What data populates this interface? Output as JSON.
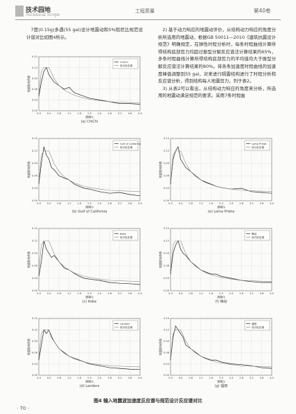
{
  "header": {
    "section": "技术园地",
    "section_en": "Technical Scope",
    "journal": "工程质量",
    "volume": "第40卷"
  },
  "text": {
    "left": "7度(0.15g)多遇(55 gal)设计地震动和5%阻尼比规范设计谱对比如图4所示。",
    "right": "2) 基于动力响应的地震动评价，从结构动力响应的角度分析所选用的地震动，根据GB 50011—2010《建筑抗震设计规范》明确规定，在弹性时程分析时，每条时程曲线计算所得结构底部剪力均超过振型分解反应谱法计算结果的65%，多条时程曲线计算所得结构底部剪力的平均值均大于振型分解反应谱法计算结果的80%。将各条加速度时程曲线的加速度峰值调整到55 gal，对来进行隔震结构进行了时程分析和反应谱分析，得到结构每人地震剪力，列于表2。",
    "right2": "3) 从表2可以看出，从结构动力响应的角度来分析，所选用的地震动满足规范的要求。采用7条时程曲"
  },
  "chart_data": [
    {
      "type": "line",
      "caption": "(a) ChiChi",
      "x_label": "周期/s",
      "y_label": "地震影响系数",
      "xlim": [
        0,
        4
      ],
      "ylim": [
        0,
        0.15
      ],
      "grid": true,
      "legend": "upper right",
      "xticks": [
        {
          "value": 0,
          "label": "0.0"
        },
        0.4,
        0.8,
        1.2,
        1.6,
        {
          "value": 2,
          "label": "2.0"
        },
        2.4,
        2.8,
        3.2,
        3.6,
        {
          "value": 4,
          "label": "4.0"
        }
      ],
      "yticks": [
        {
          "value": 0,
          "label": "0.00"
        },
        {
          "value": 0.03,
          "label": "0.03"
        },
        {
          "value": 0.06,
          "label": "0.06"
        },
        {
          "value": 0.09,
          "label": "0.09"
        },
        {
          "value": 0.12,
          "label": "0.12"
        },
        {
          "value": 0.15,
          "label": "0.15"
        }
      ],
      "x": [
        0,
        0.1,
        0.2,
        0.3,
        0.4,
        0.5,
        0.6,
        0.8,
        1,
        1.2,
        1.4,
        1.6,
        1.8,
        2,
        2.4,
        2.8,
        3.2,
        3.6,
        4
      ],
      "series": [
        {
          "name": "ChiChi",
          "color": "#222222",
          "values": [
            0.04,
            0.08,
            0.11,
            0.12,
            0.1,
            0.09,
            0.08,
            0.07,
            0.06,
            0.065,
            0.05,
            0.045,
            0.04,
            0.035,
            0.03,
            0.025,
            0.02,
            0.02,
            0.018
          ]
        },
        {
          "name": "设计反应谱",
          "color": "#8a8a8a",
          "values": [
            0.045,
            0.11,
            0.12,
            0.12,
            0.12,
            0.105,
            0.09,
            0.07,
            0.058,
            0.05,
            0.043,
            0.039,
            0.035,
            0.032,
            0.028,
            0.025,
            0.024,
            0.023,
            0.022
          ]
        }
      ]
    },
    {
      "type": "line",
      "caption": "(b) Gulf of California",
      "x_label": "周期/s",
      "y_label": "地震影响系数",
      "xlim": [
        0,
        4
      ],
      "ylim": [
        0,
        0.15
      ],
      "grid": true,
      "legend": "upper right",
      "xticks": [
        {
          "value": 0,
          "label": "0.0"
        },
        0.4,
        0.8,
        1.2,
        1.6,
        {
          "value": 2,
          "label": "2.0"
        },
        2.4,
        2.8,
        3.2,
        3.6,
        {
          "value": 4,
          "label": "4.0"
        }
      ],
      "yticks": [
        {
          "value": 0,
          "label": "0.00"
        },
        {
          "value": 0.03,
          "label": "0.03"
        },
        {
          "value": 0.06,
          "label": "0.06"
        },
        {
          "value": 0.09,
          "label": "0.09"
        },
        {
          "value": 0.12,
          "label": "0.12"
        },
        {
          "value": 0.15,
          "label": "0.15"
        }
      ],
      "x": [
        0,
        0.1,
        0.2,
        0.3,
        0.4,
        0.5,
        0.6,
        0.8,
        1,
        1.2,
        1.4,
        1.6,
        1.8,
        2,
        2.4,
        2.8,
        3.2,
        3.6,
        4
      ],
      "series": [
        {
          "name": "Gulf of California",
          "color": "#222222",
          "values": [
            0.04,
            0.09,
            0.13,
            0.11,
            0.1,
            0.08,
            0.075,
            0.06,
            0.055,
            0.05,
            0.04,
            0.035,
            0.03,
            0.028,
            0.022,
            0.018,
            0.02,
            0.015,
            0.012
          ]
        },
        {
          "name": "设计反应谱",
          "color": "#8a8a8a",
          "values": [
            0.045,
            0.11,
            0.12,
            0.12,
            0.12,
            0.105,
            0.09,
            0.07,
            0.058,
            0.05,
            0.043,
            0.039,
            0.035,
            0.032,
            0.028,
            0.025,
            0.024,
            0.023,
            0.022
          ]
        }
      ]
    },
    {
      "type": "line",
      "caption": "(c) Kobe",
      "x_label": "周期/s",
      "y_label": "地震影响系数",
      "xlim": [
        0,
        4
      ],
      "ylim": [
        0,
        0.15
      ],
      "grid": true,
      "legend": "upper right",
      "xticks": [
        {
          "value": 0,
          "label": "0.0"
        },
        0.4,
        0.8,
        1.2,
        1.6,
        {
          "value": 2,
          "label": "2.0"
        },
        2.4,
        2.8,
        3.2,
        3.6,
        {
          "value": 4,
          "label": "4.0"
        }
      ],
      "yticks": [
        {
          "value": 0,
          "label": "0.00"
        },
        {
          "value": 0.03,
          "label": "0.03"
        },
        {
          "value": 0.06,
          "label": "0.06"
        },
        {
          "value": 0.09,
          "label": "0.09"
        },
        {
          "value": 0.12,
          "label": "0.12"
        },
        {
          "value": 0.15,
          "label": "0.15"
        }
      ],
      "x": [
        0,
        0.1,
        0.2,
        0.3,
        0.4,
        0.5,
        0.6,
        0.8,
        1,
        1.2,
        1.4,
        1.6,
        1.8,
        2,
        2.4,
        2.8,
        3.2,
        3.6,
        4
      ],
      "series": [
        {
          "name": "Kobe",
          "color": "#222222",
          "values": [
            0.035,
            0.07,
            0.12,
            0.1,
            0.09,
            0.08,
            0.085,
            0.07,
            0.055,
            0.05,
            0.042,
            0.035,
            0.03,
            0.028,
            0.025,
            0.02,
            0.018,
            0.017,
            0.015
          ]
        },
        {
          "name": "设计反应谱",
          "color": "#8a8a8a",
          "values": [
            0.045,
            0.11,
            0.12,
            0.12,
            0.12,
            0.105,
            0.09,
            0.07,
            0.058,
            0.05,
            0.043,
            0.039,
            0.035,
            0.032,
            0.028,
            0.025,
            0.024,
            0.023,
            0.022
          ]
        }
      ]
    },
    {
      "type": "line",
      "caption": "(d) Landers",
      "x_label": "周期/s",
      "y_label": "地震影响系数",
      "xlim": [
        0,
        4
      ],
      "ylim": [
        0,
        0.15
      ],
      "grid": true,
      "legend": "upper right",
      "xticks": [
        {
          "value": 0,
          "label": "0.0"
        },
        0.4,
        0.8,
        1.2,
        1.6,
        {
          "value": 2,
          "label": "2.0"
        },
        2.4,
        2.8,
        3.2,
        3.6,
        {
          "value": 4,
          "label": "4.0"
        }
      ],
      "yticks": [
        {
          "value": 0,
          "label": "0.00"
        },
        {
          "value": 0.03,
          "label": "0.03"
        },
        {
          "value": 0.06,
          "label": "0.06"
        },
        {
          "value": 0.09,
          "label": "0.09"
        },
        {
          "value": 0.12,
          "label": "0.12"
        },
        {
          "value": 0.15,
          "label": "0.15"
        }
      ],
      "x": [
        0,
        0.1,
        0.2,
        0.3,
        0.4,
        0.5,
        0.6,
        0.8,
        1,
        1.2,
        1.4,
        1.6,
        1.8,
        2,
        2.4,
        2.8,
        3.2,
        3.6,
        4
      ],
      "series": [
        {
          "name": "Landers",
          "color": "#222222",
          "values": [
            0.04,
            0.08,
            0.12,
            0.11,
            0.12,
            0.1,
            0.09,
            0.07,
            0.06,
            0.05,
            0.045,
            0.04,
            0.035,
            0.03,
            0.025,
            0.02,
            0.018,
            0.016,
            0.015
          ]
        },
        {
          "name": "设计反应谱",
          "color": "#8a8a8a",
          "values": [
            0.045,
            0.11,
            0.12,
            0.12,
            0.12,
            0.105,
            0.09,
            0.07,
            0.058,
            0.05,
            0.043,
            0.039,
            0.035,
            0.032,
            0.028,
            0.025,
            0.024,
            0.023,
            0.022
          ]
        }
      ]
    },
    {
      "type": "line",
      "caption": "(e) Loma Prieta",
      "x_label": "周期/s",
      "y_label": "地震影响系数",
      "xlim": [
        0,
        4
      ],
      "ylim": [
        0,
        0.15
      ],
      "grid": true,
      "legend": "upper right",
      "xticks": [
        {
          "value": 0,
          "label": "0.0"
        },
        0.4,
        0.8,
        1.2,
        1.6,
        {
          "value": 2,
          "label": "2.0"
        },
        2.4,
        2.8,
        3.2,
        3.6,
        {
          "value": 4,
          "label": "4.0"
        }
      ],
      "yticks": [
        {
          "value": 0,
          "label": "0.00"
        },
        {
          "value": 0.03,
          "label": "0.03"
        },
        {
          "value": 0.06,
          "label": "0.06"
        },
        {
          "value": 0.09,
          "label": "0.09"
        },
        {
          "value": 0.12,
          "label": "0.12"
        },
        {
          "value": 0.15,
          "label": "0.15"
        }
      ],
      "x": [
        0,
        0.1,
        0.2,
        0.3,
        0.4,
        0.5,
        0.6,
        0.8,
        1,
        1.2,
        1.4,
        1.6,
        1.8,
        2,
        2.4,
        2.8,
        3.2,
        3.6,
        4
      ],
      "series": [
        {
          "name": "Loma Prieta",
          "color": "#222222",
          "values": [
            0.04,
            0.1,
            0.12,
            0.13,
            0.1,
            0.09,
            0.08,
            0.07,
            0.06,
            0.05,
            0.045,
            0.04,
            0.035,
            0.032,
            0.028,
            0.03,
            0.022,
            0.02,
            0.018
          ]
        },
        {
          "name": "设计反应谱",
          "color": "#8a8a8a",
          "values": [
            0.045,
            0.11,
            0.12,
            0.12,
            0.12,
            0.105,
            0.09,
            0.07,
            0.058,
            0.05,
            0.043,
            0.039,
            0.035,
            0.032,
            0.028,
            0.025,
            0.024,
            0.023,
            0.022
          ]
        }
      ]
    },
    {
      "type": "line",
      "caption": "(f) 梅谷",
      "x_label": "周期/s",
      "y_label": "地震影响系数",
      "xlim": [
        0,
        4
      ],
      "ylim": [
        0,
        0.15
      ],
      "grid": true,
      "legend": "upper right",
      "xticks": [
        {
          "value": 0,
          "label": "0.0"
        },
        0.4,
        0.8,
        1.2,
        1.6,
        {
          "value": 2,
          "label": "2.0"
        },
        2.4,
        2.8,
        3.2,
        3.6,
        {
          "value": 4,
          "label": "4.0"
        }
      ],
      "yticks": [
        {
          "value": 0,
          "label": "0.00"
        },
        {
          "value": 0.03,
          "label": "0.03"
        },
        {
          "value": 0.06,
          "label": "0.06"
        },
        {
          "value": 0.09,
          "label": "0.09"
        },
        {
          "value": 0.12,
          "label": "0.12"
        },
        {
          "value": 0.15,
          "label": "0.15"
        }
      ],
      "x": [
        0,
        0.1,
        0.2,
        0.3,
        0.4,
        0.5,
        0.6,
        0.8,
        1,
        1.2,
        1.4,
        1.6,
        1.8,
        2,
        2.4,
        2.8,
        3.2,
        3.6,
        4
      ],
      "series": [
        {
          "name": "梅谷",
          "color": "#222222",
          "values": [
            0.04,
            0.09,
            0.11,
            0.12,
            0.1,
            0.09,
            0.085,
            0.07,
            0.06,
            0.05,
            0.045,
            0.04,
            0.04,
            0.035,
            0.03,
            0.025,
            0.022,
            0.02,
            0.02
          ]
        },
        {
          "name": "设计反应谱",
          "color": "#8a8a8a",
          "values": [
            0.045,
            0.11,
            0.12,
            0.12,
            0.12,
            0.105,
            0.09,
            0.07,
            0.058,
            0.05,
            0.043,
            0.039,
            0.035,
            0.032,
            0.028,
            0.025,
            0.024,
            0.023,
            0.022
          ]
        }
      ]
    },
    {
      "type": "line",
      "caption": "(g) 福田",
      "x_label": "周期/s",
      "y_label": "地震影响系数",
      "xlim": [
        0,
        4
      ],
      "ylim": [
        0,
        0.15
      ],
      "grid": true,
      "legend": "upper right",
      "xticks": [
        {
          "value": 0,
          "label": "0.0"
        },
        0.4,
        0.8,
        1.2,
        1.6,
        {
          "value": 2,
          "label": "2.0"
        },
        2.4,
        2.8,
        3.2,
        3.6,
        {
          "value": 4,
          "label": "4.0"
        }
      ],
      "yticks": [
        {
          "value": 0,
          "label": "0.00"
        },
        {
          "value": 0.03,
          "label": "0.03"
        },
        {
          "value": 0.06,
          "label": "0.06"
        },
        {
          "value": 0.09,
          "label": "0.09"
        },
        {
          "value": 0.12,
          "label": "0.12"
        },
        {
          "value": 0.15,
          "label": "0.15"
        }
      ],
      "x": [
        0,
        0.1,
        0.2,
        0.3,
        0.4,
        0.5,
        0.6,
        0.8,
        1,
        1.2,
        1.4,
        1.6,
        1.8,
        2,
        2.4,
        2.8,
        3.2,
        3.6,
        4
      ],
      "series": [
        {
          "name": "福田",
          "color": "#222222",
          "values": [
            0.04,
            0.1,
            0.13,
            0.12,
            0.11,
            0.1,
            0.08,
            0.07,
            0.06,
            0.05,
            0.045,
            0.04,
            0.04,
            0.035,
            0.03,
            0.028,
            0.025,
            0.02,
            0.018
          ]
        },
        {
          "name": "设计反应谱",
          "color": "#8a8a8a",
          "values": [
            0.045,
            0.11,
            0.12,
            0.12,
            0.12,
            0.105,
            0.09,
            0.07,
            0.058,
            0.05,
            0.043,
            0.039,
            0.035,
            0.032,
            0.028,
            0.025,
            0.024,
            0.023,
            0.022
          ]
        }
      ]
    }
  ],
  "figure_caption": "图4  输入地震波加速度反应谱与规范设计反应谱对比",
  "page_number": "· 70 ·"
}
